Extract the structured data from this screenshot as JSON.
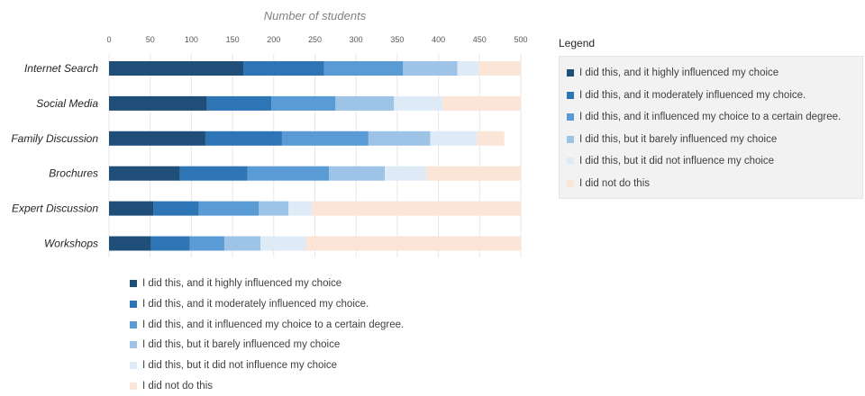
{
  "chart_data": {
    "type": "bar",
    "orientation": "horizontal",
    "stacked": true,
    "title": "",
    "xlabel": "Number of students",
    "ylabel": "",
    "xlim": [
      0,
      500
    ],
    "xticks": [
      0,
      50,
      100,
      150,
      200,
      250,
      300,
      350,
      400,
      450,
      500
    ],
    "grid": true,
    "categories": [
      "Internet Search",
      "Social Media",
      "Family Discussion",
      "Brochures",
      "Expert Discussion",
      "Workshops"
    ],
    "series": [
      {
        "name": "I did this, and it highly influenced my choice",
        "color": "#1f4e79",
        "values": [
          163,
          119,
          117,
          86,
          54,
          51
        ]
      },
      {
        "name": "I did this, and it moderately influenced my choice.",
        "color": "#2e75b6",
        "values": [
          98,
          78,
          93,
          82,
          55,
          47
        ]
      },
      {
        "name": "I did this, and it influenced my choice to a certain degree.",
        "color": "#5b9bd5",
        "values": [
          96,
          78,
          105,
          99,
          73,
          42
        ]
      },
      {
        "name": "I did this, but it barely influenced my choice",
        "color": "#9dc3e6",
        "values": [
          66,
          71,
          75,
          68,
          36,
          44
        ]
      },
      {
        "name": "I did this, but it did not influence my choice",
        "color": "#deebf7",
        "values": [
          26,
          59,
          57,
          50,
          29,
          55
        ]
      },
      {
        "name": "I did not do this",
        "color": "#fbe5d6",
        "values": [
          51,
          95,
          33,
          115,
          253,
          261
        ]
      }
    ],
    "legend_title": "Legend",
    "legend_placement": [
      "right",
      "bottom"
    ]
  }
}
